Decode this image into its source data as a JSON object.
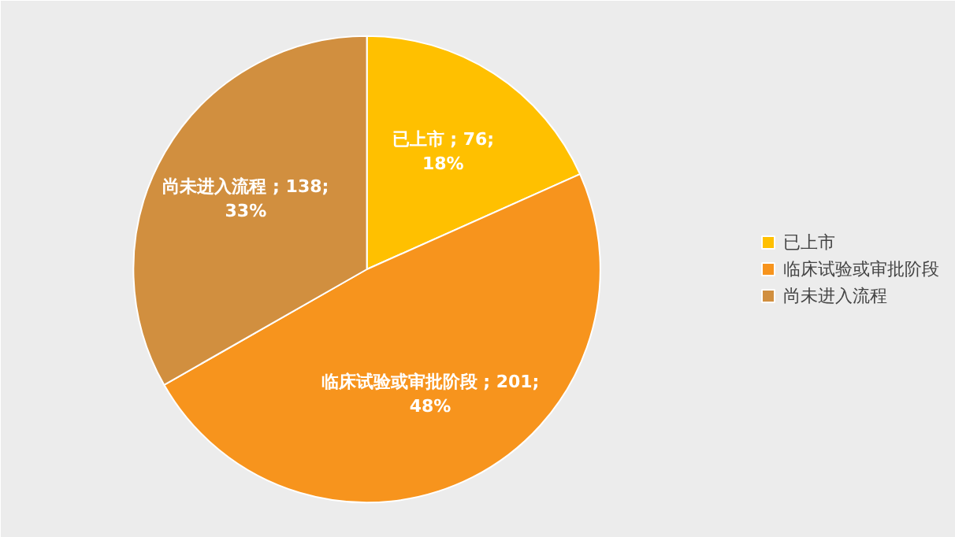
{
  "chart_data": {
    "type": "pie",
    "categories": [
      "已上市",
      "临床试验或审批阶段",
      "尚未进入流程"
    ],
    "values": [
      76,
      201,
      138
    ],
    "colors": [
      "#ffc000",
      "#f7941d",
      "#d18f3f"
    ],
    "value_labels": [
      "已上市 ; 76; 18%",
      "临床试验或审批阶段 ; 201; 48%",
      "尚未进入流程 ; 138; 33%"
    ],
    "legend": "right"
  }
}
